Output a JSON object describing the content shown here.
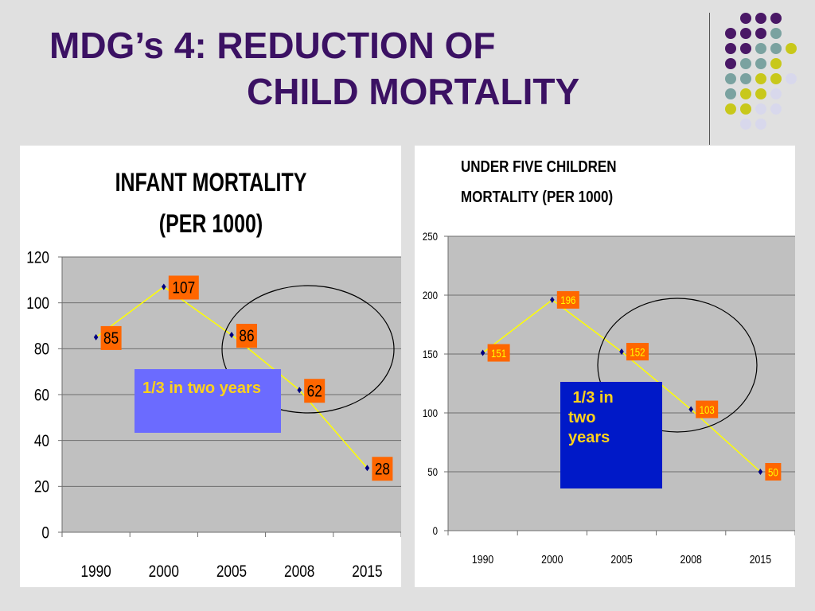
{
  "slide": {
    "title_line1": "MDG’s 4: REDUCTION OF",
    "title_line2": "CHILD MORTALITY"
  },
  "colors": {
    "title": "#3b1163",
    "plot_bg": "#c0c0c0",
    "line": "#ffff00",
    "label_bg": "#ff6600",
    "marker": "#000080",
    "dot_purple": "#4a1866",
    "dot_teal": "#7aa2a0",
    "dot_yellow": "#c8c81a",
    "dot_lavender": "#d8d8ec"
  },
  "callouts": {
    "infant": "1/3 in two years",
    "under_five": " 1/3 in two years"
  },
  "chart_data": [
    {
      "type": "line",
      "title": "INFANT MORTALITY (PER 1000)",
      "categories": [
        "1990",
        "2000",
        "2005",
        "2008",
        "2015"
      ],
      "values": [
        85,
        107,
        86,
        62,
        28
      ],
      "data_labels": [
        "85",
        "107",
        "86",
        "62",
        "28"
      ],
      "yticks": [
        "0",
        "20",
        "40",
        "60",
        "80",
        "100",
        "120"
      ],
      "ylim": [
        0,
        120
      ],
      "grid": true,
      "legend": "none",
      "label_color": "#000000"
    },
    {
      "type": "line",
      "title": "UNDER FIVE CHILDREN MORTALITY (PER 1000)",
      "categories": [
        "1990",
        "2000",
        "2005",
        "2008",
        "2015"
      ],
      "values": [
        151,
        196,
        152,
        103,
        50
      ],
      "data_labels": [
        "151",
        "196",
        "152",
        "103",
        "50"
      ],
      "yticks": [
        "0",
        "50",
        "100",
        "150",
        "200",
        "250"
      ],
      "ylim": [
        0,
        250
      ],
      "grid": true,
      "legend": "none",
      "label_color": "#ffff00"
    }
  ]
}
